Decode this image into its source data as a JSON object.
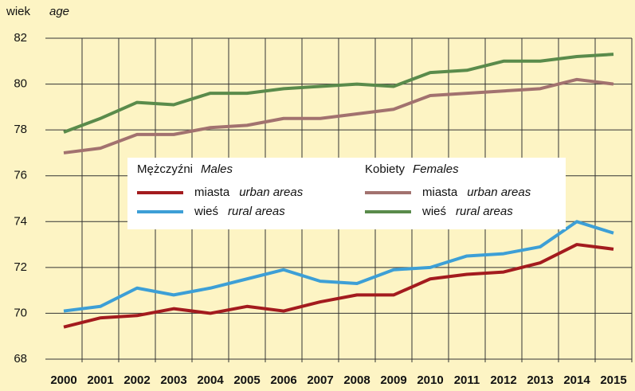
{
  "chart_data": {
    "type": "line",
    "ylabel": "wiek",
    "ylabel_en": "age",
    "categories": [
      "2000",
      "2001",
      "2002",
      "2003",
      "2004",
      "2005",
      "2006",
      "2007",
      "2008",
      "2009",
      "2010",
      "2011",
      "2012",
      "2013",
      "2014",
      "2015"
    ],
    "legend_groups": [
      {
        "title": "Mężczyźni",
        "title_en": "Males"
      },
      {
        "title": "Kobiety",
        "title_en": "Females"
      }
    ],
    "series": [
      {
        "name": "miasta",
        "name_en": "urban areas",
        "color": "#a31b1e",
        "values": [
          69.4,
          69.8,
          69.9,
          70.2,
          70.0,
          70.3,
          70.1,
          70.5,
          70.8,
          70.8,
          71.5,
          71.7,
          71.8,
          72.2,
          73.0,
          72.8
        ]
      },
      {
        "name": "wieś",
        "name_en": "rural areas",
        "color": "#3d9fd6",
        "values": [
          70.1,
          70.3,
          71.1,
          70.8,
          71.1,
          71.5,
          71.9,
          71.4,
          71.3,
          71.9,
          72.0,
          72.5,
          72.6,
          72.9,
          74.0,
          73.5
        ]
      },
      {
        "name": "miasta",
        "name_en": "urban areas",
        "color": "#a2726f",
        "values": [
          77.0,
          77.2,
          77.8,
          77.8,
          78.1,
          78.2,
          78.5,
          78.5,
          78.7,
          78.9,
          79.5,
          79.6,
          79.7,
          79.8,
          80.2,
          80.0
        ]
      },
      {
        "name": "wieś",
        "name_en": "rural areas",
        "color": "#5a8b4b",
        "values": [
          77.9,
          78.5,
          79.2,
          79.1,
          79.6,
          79.6,
          79.8,
          79.9,
          80.0,
          79.9,
          80.5,
          80.6,
          81.0,
          81.0,
          81.2,
          81.3
        ]
      }
    ],
    "ylim": [
      68,
      82
    ],
    "yticks": [
      68,
      70,
      72,
      74,
      76,
      78,
      80,
      82
    ],
    "grid": true
  }
}
